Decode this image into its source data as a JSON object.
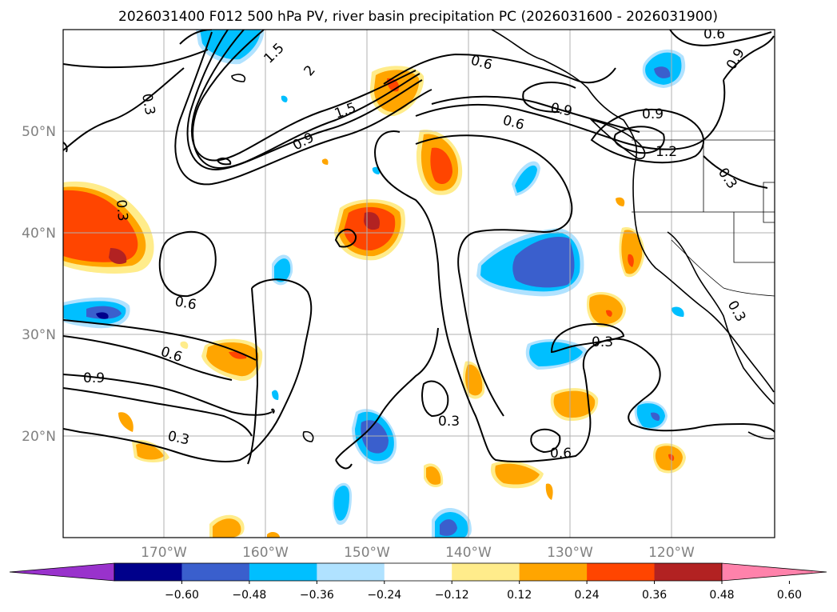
{
  "title": "2026031400 F012 500 hPa PV, river basin precipitation PC (2026031600 - 2026031900)",
  "axes": {
    "lat_labels": [
      "50°N",
      "40°N",
      "30°N",
      "20°N"
    ],
    "lon_labels": [
      "170°W",
      "160°W",
      "150°W",
      "140°W",
      "130°W",
      "120°W"
    ]
  },
  "colorbar": {
    "colors": [
      "#9932cc",
      "#00008b",
      "#3a5fcd",
      "#00bfff",
      "#b0e2ff",
      "#ffffff",
      "#ffec8b",
      "#ffa500",
      "#ff4500",
      "#b22222",
      "#ff82ab"
    ],
    "ticks": [
      "−0.60",
      "−0.48",
      "−0.36",
      "−0.24",
      "−0.12",
      "0.12",
      "0.24",
      "0.36",
      "0.48",
      "0.60"
    ]
  },
  "contour_labels": [
    "0.3",
    "0.6",
    "0.9",
    "1.5",
    "2",
    "0.6",
    "0.6",
    "0.9",
    "0.3",
    "0.6",
    "0.9",
    "2",
    "1.2",
    "0.3",
    "0.9",
    "0.3",
    "0.3",
    "0.6",
    "0.3",
    "0.6",
    "0.6",
    "0.9",
    "0.3",
    "0.3",
    "0.6"
  ],
  "chart_data": {
    "type": "map",
    "title": "2026031400 F012 500 hPa PV, river basin precipitation PC (2026031600 - 2026031900)",
    "lon_range": [
      -180,
      -110
    ],
    "lat_range": [
      10,
      60
    ],
    "pv_contour_levels": [
      0.3,
      0.6,
      0.9,
      1.2,
      1.5,
      2
    ],
    "pc_levels": [
      -0.6,
      -0.48,
      -0.36,
      -0.24,
      -0.12,
      0.12,
      0.24,
      0.36,
      0.48,
      0.6
    ]
  }
}
